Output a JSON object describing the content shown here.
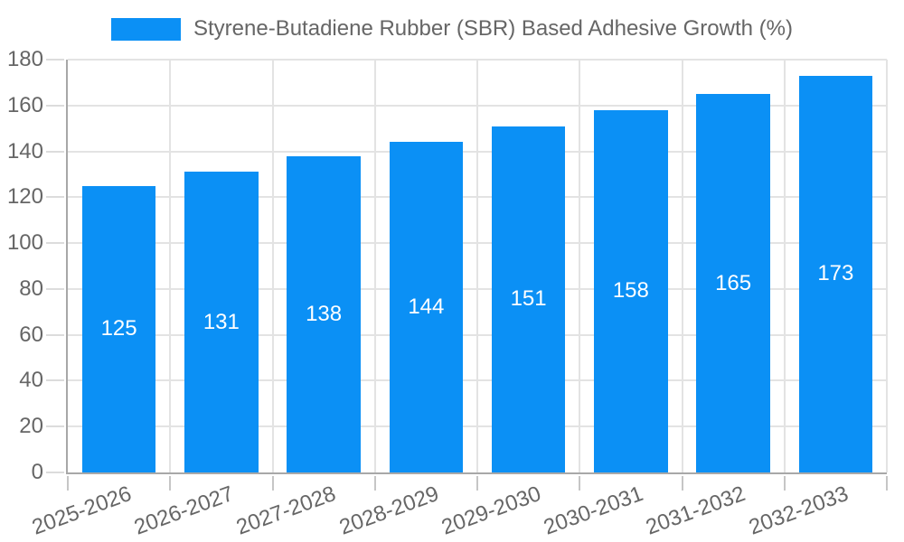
{
  "legend": {
    "label": "Styrene-Butadiene Rubber (SBR) Based Adhesive Growth (%)"
  },
  "chart_data": {
    "type": "bar",
    "title": "Styrene-Butadiene Rubber (SBR) Based Adhesive Growth (%)",
    "categories": [
      "2025-2026",
      "2026-2027",
      "2027-2028",
      "2028-2029",
      "2029-2030",
      "2030-2031",
      "2031-2032",
      "2032-2033"
    ],
    "values": [
      125,
      131,
      138,
      144,
      151,
      158,
      165,
      173
    ],
    "series": [
      {
        "name": "Styrene-Butadiene Rubber (SBR) Based Adhesive Growth (%)",
        "values": [
          125,
          131,
          138,
          144,
          151,
          158,
          165,
          173
        ]
      }
    ],
    "xlabel": "",
    "ylabel": "",
    "ylim": [
      0,
      180
    ],
    "y_ticks": [
      0,
      20,
      40,
      60,
      80,
      100,
      120,
      140,
      160,
      180
    ],
    "grid": true,
    "legend_position": "top",
    "x_label_rotation_deg": -20,
    "bar_value_labels_shown": true,
    "colors": {
      "bar": "#0b90f5",
      "value_label": "#ffffff",
      "axis_text": "#666666"
    }
  }
}
